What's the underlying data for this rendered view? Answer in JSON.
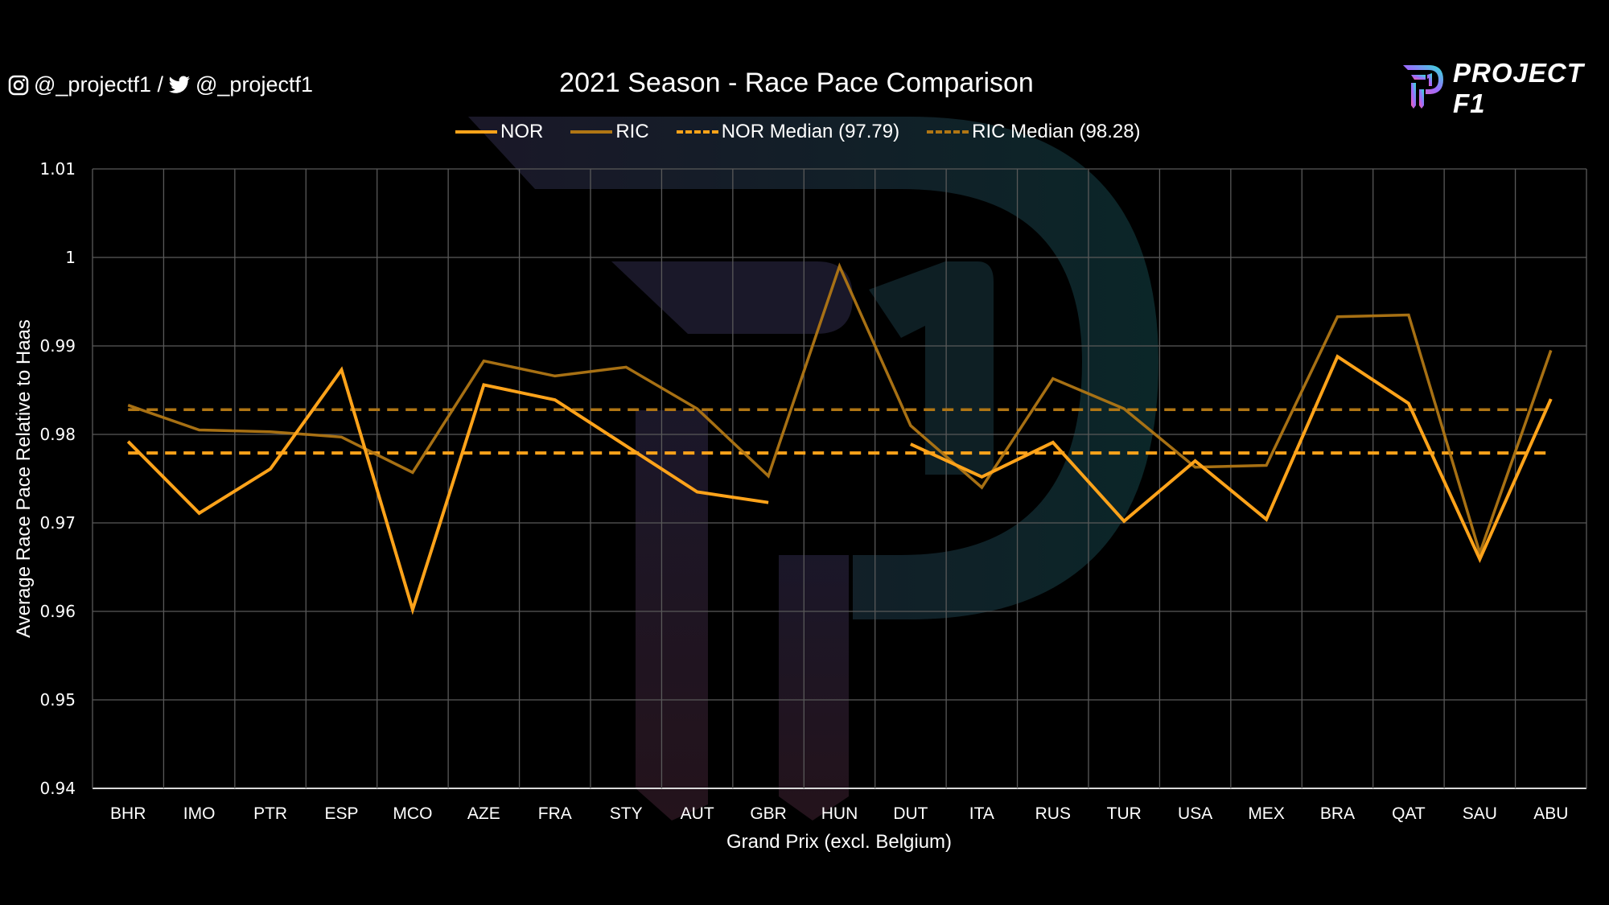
{
  "header": {
    "instagram_handle": "@_projectf1 /",
    "twitter_handle": "@_projectf1",
    "brand": "PROJECT F1"
  },
  "colors": {
    "background": "#000000",
    "nor": "#FFA31A",
    "ric": "#B07614",
    "grid": "#595959",
    "axis": "#d9d9d9",
    "watermark_left": "#1d1a2c",
    "watermark_right": "#0c2a2c"
  },
  "chart_data": {
    "type": "line",
    "title": "2021 Season - Race Pace Comparison",
    "xlabel": "Grand Prix (excl. Belgium)",
    "ylabel": "Average Race Pace Relative to Haas",
    "ylim": [
      0.94,
      1.01
    ],
    "yticks": [
      0.94,
      0.95,
      0.96,
      0.97,
      0.98,
      0.99,
      1,
      1.01
    ],
    "ytick_labels": [
      "0.94",
      "0.95",
      "0.96",
      "0.97",
      "0.98",
      "0.99",
      "1",
      "1.01"
    ],
    "grid": true,
    "legend_position": "top-center",
    "categories": [
      "BHR",
      "IMO",
      "PTR",
      "ESP",
      "MCO",
      "AZE",
      "FRA",
      "STY",
      "AUT",
      "GBR",
      "HUN",
      "DUT",
      "ITA",
      "RUS",
      "TUR",
      "USA",
      "MEX",
      "BRA",
      "QAT",
      "SAU",
      "ABU"
    ],
    "series": [
      {
        "name": "NOR",
        "legend_label": "NOR",
        "style": "solid",
        "values": [
          0.9792,
          0.9711,
          0.9761,
          0.9873,
          0.9602,
          0.9856,
          0.9839,
          0.9787,
          0.9735,
          0.9723,
          null,
          0.9789,
          0.9752,
          0.9791,
          0.9702,
          0.977,
          0.9704,
          0.9888,
          0.9835,
          0.9659,
          0.984
        ]
      },
      {
        "name": "RIC",
        "legend_label": "RIC",
        "style": "solid",
        "values": [
          0.9833,
          0.9805,
          0.9803,
          0.9797,
          0.9757,
          0.9883,
          0.9866,
          0.9876,
          0.9829,
          0.9753,
          0.999,
          0.981,
          0.974,
          0.9863,
          0.9829,
          0.9763,
          0.9765,
          0.9933,
          0.9935,
          0.9666,
          0.9895
        ]
      }
    ],
    "reference_lines": [
      {
        "name": "NOR Median",
        "legend_label": "NOR Median (97.79)",
        "value": 0.9779,
        "style": "dashed",
        "series": "NOR"
      },
      {
        "name": "RIC Median",
        "legend_label": "RIC Median (98.28)",
        "value": 0.9828,
        "style": "dashed",
        "series": "RIC"
      }
    ]
  }
}
